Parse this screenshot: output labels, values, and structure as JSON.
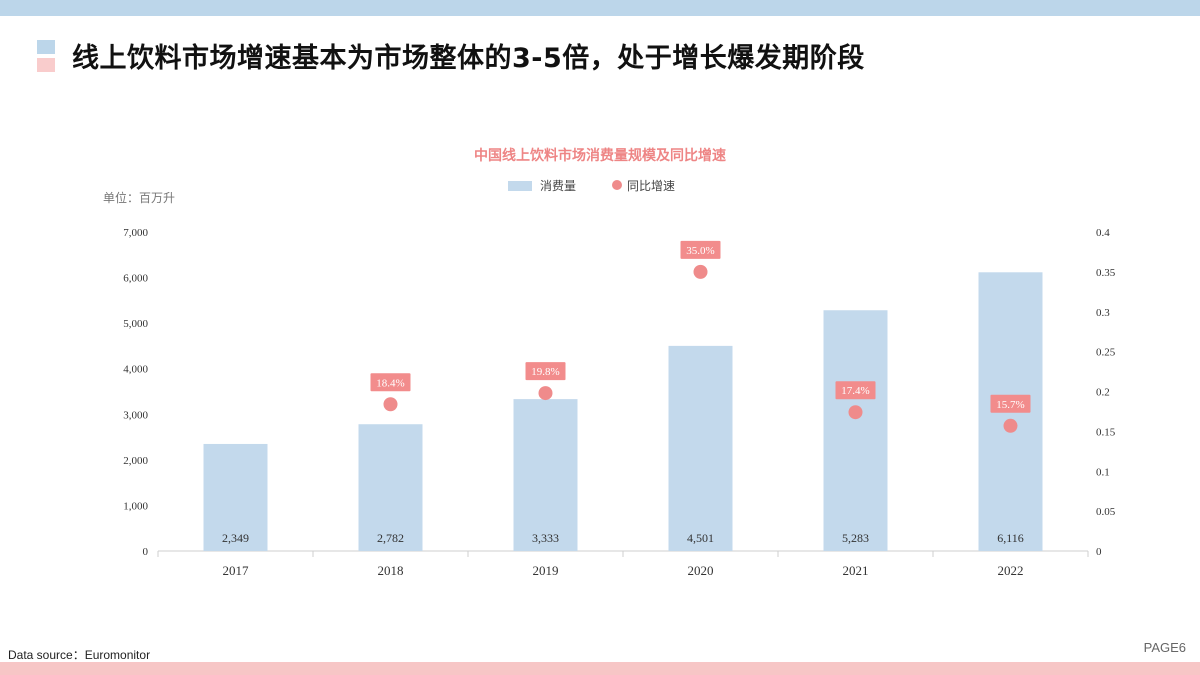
{
  "slide": {
    "headline": "线上饮料市场增速基本为市场整体的3-5倍，处于增长爆发期阶段",
    "source": "Data source：Euromonitor",
    "page": "PAGE6"
  },
  "colors": {
    "bar": "#c3d9ec",
    "point": "#ef8b8b",
    "point_label_bg": "#f28c8c",
    "title": "#ee8585",
    "top_band": "#bcd6ea",
    "bottom_band": "#f7c6c6"
  },
  "chart_data": {
    "type": "bar",
    "title": "中国线上饮料市场消费量规模及同比增速",
    "unit_label": "单位：百万升",
    "categories": [
      "2017",
      "2018",
      "2019",
      "2020",
      "2021",
      "2022"
    ],
    "series": [
      {
        "name": "消费量",
        "type": "bar",
        "axis": "left",
        "values": [
          2349,
          2782,
          3333,
          4501,
          5283,
          6116
        ],
        "labels": [
          "2,349",
          "2,782",
          "3,333",
          "4,501",
          "5,283",
          "6,116"
        ]
      },
      {
        "name": "同比增速",
        "type": "scatter",
        "axis": "right",
        "values": [
          null,
          0.184,
          0.198,
          0.35,
          0.174,
          0.157
        ],
        "labels": [
          "",
          "18.4%",
          "19.8%",
          "35.0%",
          "17.4%",
          "15.7%"
        ]
      }
    ],
    "y_left": {
      "min": 0,
      "max": 7000,
      "ticks": [
        "0",
        "1,000",
        "2,000",
        "3,000",
        "4,000",
        "5,000",
        "6,000",
        "7,000"
      ]
    },
    "y_right": {
      "min": 0,
      "max": 0.4,
      "ticks": [
        "0",
        "0.05",
        "0.1",
        "0.15",
        "0.2",
        "0.25",
        "0.3",
        "0.35",
        "0.4"
      ]
    },
    "legend_position": "top-center",
    "grid": false
  }
}
